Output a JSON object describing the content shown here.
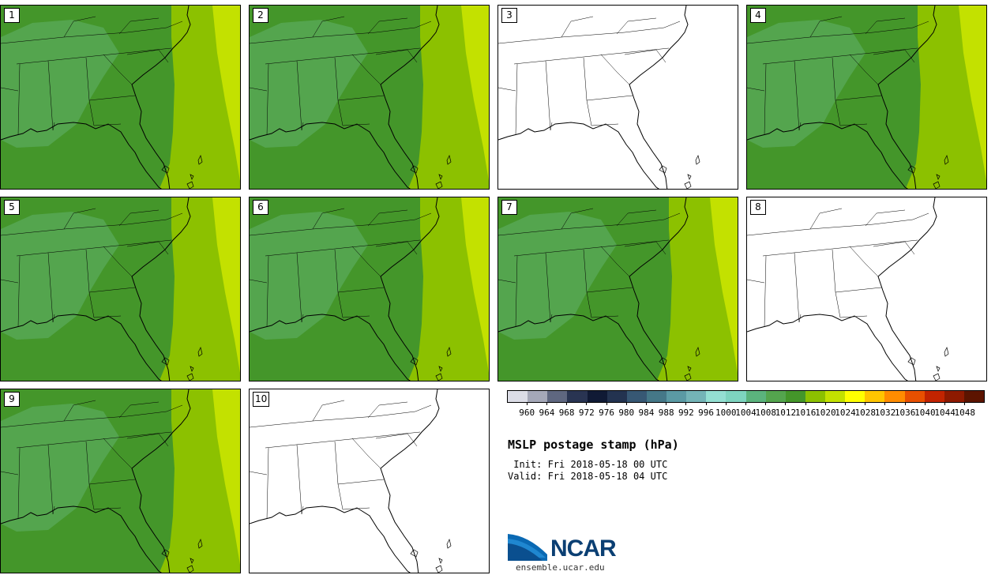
{
  "colors": {
    "dark_green": "#44962a",
    "med_green": "#54a54e",
    "lime": "#8cc100",
    "yellow_green": "#c3e100",
    "line": "#000000"
  },
  "panels": [
    {
      "label": "1",
      "style": "filled"
    },
    {
      "label": "2",
      "style": "filled"
    },
    {
      "label": "3",
      "style": "blank"
    },
    {
      "label": "4",
      "style": "filled"
    },
    {
      "label": "5",
      "style": "filled"
    },
    {
      "label": "6",
      "style": "filled"
    },
    {
      "label": "7",
      "style": "filled"
    },
    {
      "label": "8",
      "style": "blank"
    },
    {
      "label": "9",
      "style": "filled"
    },
    {
      "label": "10",
      "style": "blank"
    }
  ],
  "colorbar": {
    "ticks": [
      "960",
      "964",
      "968",
      "972",
      "976",
      "980",
      "984",
      "988",
      "992",
      "996",
      "1000",
      "1004",
      "1008",
      "1012",
      "1016",
      "1020",
      "1024",
      "1028",
      "1032",
      "1036",
      "1040",
      "1044",
      "1048"
    ],
    "colors": [
      "#dcdde6",
      "#a5a8b8",
      "#5f6780",
      "#293452",
      "#101a35",
      "#233350",
      "#375874",
      "#457888",
      "#5b9aa4",
      "#74b4b7",
      "#94dfd2",
      "#7ed4bf",
      "#5bb37d",
      "#54a54e",
      "#44962a",
      "#8cc100",
      "#c3e100",
      "#ffff00",
      "#ffc500",
      "#ff8c00",
      "#e85000",
      "#c22400",
      "#8e1a00",
      "#5c1400"
    ]
  },
  "title": "MSLP postage stamp (hPa)",
  "init": " Init: Fri 2018-05-18 00 UTC",
  "valid": "Valid: Fri 2018-05-18 04 UTC",
  "logo": {
    "text": "NCAR",
    "url": "ensemble.ucar.edu"
  }
}
